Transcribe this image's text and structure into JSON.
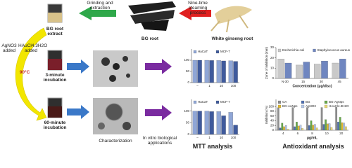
{
  "labels": {
    "grinding": "Grinding and extraction",
    "steaming": "Nine-time steaming process",
    "bg_extract": "BG root extract",
    "bg_root": "BG root",
    "white_root": "White ginseng root",
    "agno3": "AgNO3 added",
    "haucl4": "HAuCl4.3H2O added",
    "temp": "90°C",
    "min3": "3-minute incubation",
    "min60": "60-minute incubation",
    "characterization": "Characterization",
    "invitro": "In vitro biological applications",
    "mtt": "MTT analysis",
    "antiox": "Antioxidant analysis"
  },
  "charts": [
    {
      "type": "bar",
      "categories": [
        "–",
        "1",
        "10",
        "100"
      ],
      "series": [
        {
          "name": "HaCaT",
          "color": "#8fa6d6",
          "values": [
            100,
            100,
            99,
            98
          ]
        },
        {
          "name": "MCF-7",
          "color": "#3f5a9c",
          "values": [
            100,
            99,
            97,
            95
          ]
        }
      ],
      "ylim": [
        0,
        150
      ],
      "yticks": [
        0,
        50,
        100
      ]
    },
    {
      "type": "bar",
      "categories": [
        "–",
        "1",
        "10",
        "100"
      ],
      "series": [
        {
          "name": "HaCaT",
          "color": "#8fa6d6",
          "values": [
            100,
            100,
            98,
            95
          ]
        },
        {
          "name": "MCF-7",
          "color": "#3f5a9c",
          "values": [
            100,
            98,
            80,
            40
          ]
        }
      ],
      "ylim": [
        0,
        150
      ],
      "yticks": [
        0,
        50,
        100
      ]
    },
    {
      "type": "bar",
      "y_label": "Zone of inhibition (mm)",
      "x_label": "Concentration (μg/disc)",
      "categories": [
        "N-30",
        "15",
        "30",
        "45"
      ],
      "series": [
        {
          "name": "Escherichia coli",
          "color": "#c9c9c9",
          "values": [
            19,
            13,
            14,
            15
          ]
        },
        {
          "name": "Staphylococcus aureus",
          "color": "#6f86c0",
          "values": [
            15,
            16,
            17,
            19
          ]
        }
      ],
      "ylim": [
        0,
        30
      ],
      "yticks": [
        0,
        10,
        20,
        30
      ]
    },
    {
      "type": "bar",
      "y_label": "Inhibition (%)",
      "x_label": "μg/mL",
      "categories": [
        "4",
        "6",
        "8",
        "10",
        "20"
      ],
      "series": [
        {
          "name": "GA",
          "color": "#8c8c8c",
          "values": [
            95,
            96,
            96,
            96,
            97
          ]
        },
        {
          "name": "BG",
          "color": "#4f6fb0",
          "values": [
            10,
            15,
            20,
            25,
            35
          ]
        },
        {
          "name": "BG-AgNps",
          "color": "#67a84a",
          "values": [
            30,
            35,
            40,
            45,
            55
          ]
        },
        {
          "name": "BG-AuNps",
          "color": "#e0b92f",
          "values": [
            15,
            18,
            22,
            27,
            32
          ]
        },
        {
          "name": "AgNO3",
          "color": "#b5c7e6",
          "values": [
            20,
            22,
            25,
            28,
            30
          ]
        },
        {
          "name": "HAuCl4.3H2O",
          "color": "#e8d774",
          "values": [
            5,
            8,
            10,
            12,
            15
          ]
        }
      ],
      "ylim": [
        0,
        130
      ],
      "yticks": [
        0,
        20,
        40,
        60,
        80,
        100
      ]
    }
  ]
}
